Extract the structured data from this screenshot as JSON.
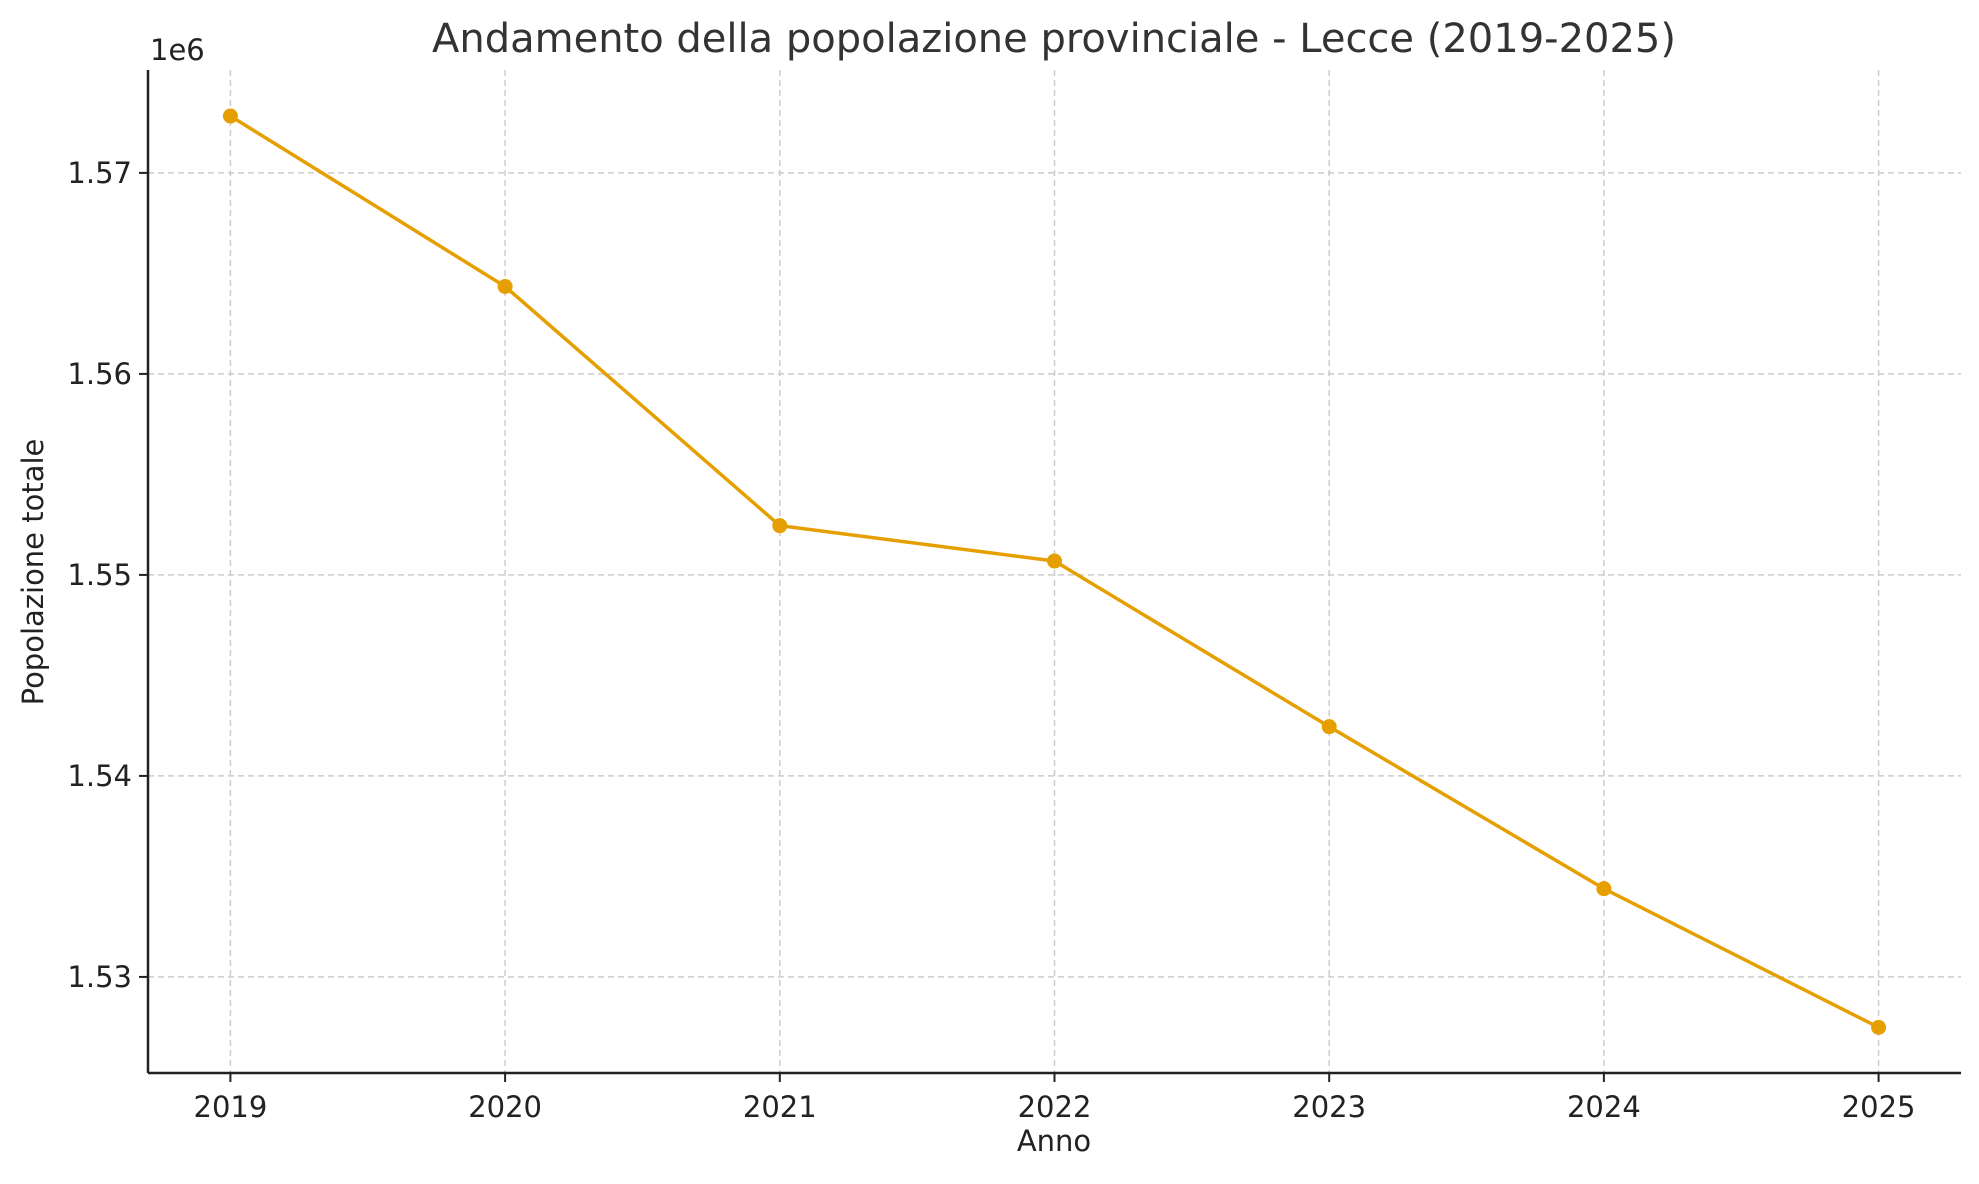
{
  "chart_data": {
    "type": "line",
    "title": "Andamento della popolazione provinciale - Lecce (2019-2025)",
    "xlabel": "Anno",
    "ylabel": "Popolazione totale",
    "y_offset_label": "1e6",
    "x": [
      2019,
      2020,
      2021,
      2022,
      2023,
      2024,
      2025
    ],
    "x_tick_labels": [
      "2019",
      "2020",
      "2021",
      "2022",
      "2023",
      "2024",
      "2025"
    ],
    "series": [
      {
        "name": "Popolazione totale",
        "values": [
          1572830,
          1564350,
          1552450,
          1550690,
          1542450,
          1534390,
          1527490
        ],
        "color": "#E69F00",
        "marker": "circle"
      }
    ],
    "y_ticks": [
      1530000,
      1540000,
      1550000,
      1560000,
      1570000
    ],
    "y_tick_labels": [
      "1.53",
      "1.54",
      "1.55",
      "1.56",
      "1.57"
    ],
    "xlim": [
      2018.7,
      2025.3
    ],
    "ylim": [
      1525220,
      1575120
    ],
    "grid": true
  }
}
